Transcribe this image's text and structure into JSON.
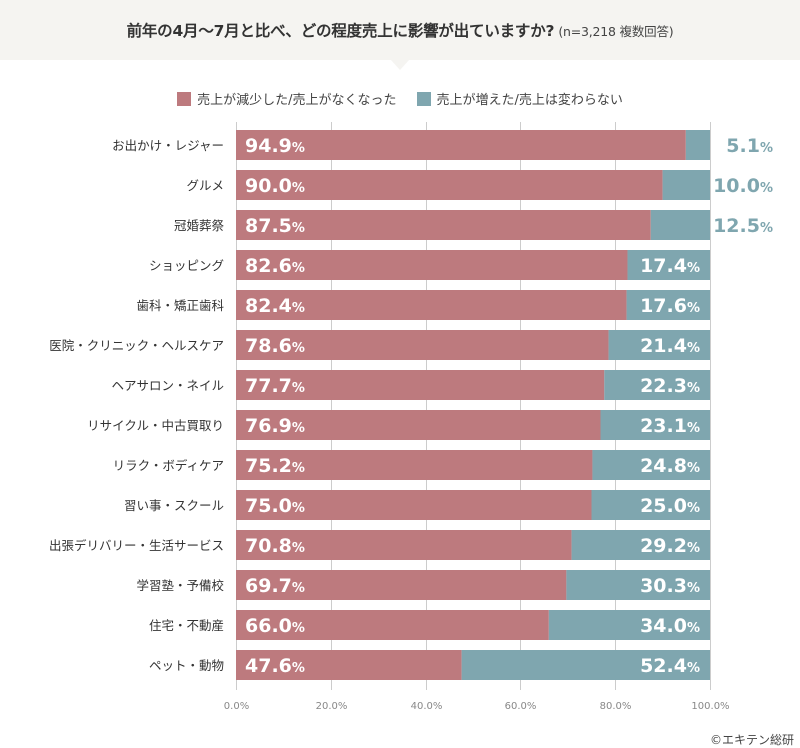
{
  "header": {
    "title": "前年の4月〜7月と比べ、どの程度売上に影響が出ていますか?",
    "subtitle": "(n=3,218 複数回答)"
  },
  "colors": {
    "decreased": "#bd7a7e",
    "increased": "#7fa6af",
    "grid": "#cccccc",
    "label_outside": "#7fa6af"
  },
  "chart_data": {
    "type": "bar",
    "orientation": "horizontal-stacked-100",
    "title": "前年の4月〜7月と比べ、どの程度売上に影響が出ていますか? (n=3,218 複数回答)",
    "xlabel": "",
    "ylabel": "",
    "xlim": [
      0,
      100
    ],
    "x_ticks": [
      "0.0%",
      "20.0%",
      "40.0%",
      "60.0%",
      "80.0%",
      "100.0%"
    ],
    "x_tick_values": [
      0,
      20,
      40,
      60,
      80,
      100
    ],
    "grid": true,
    "legend_position": "top-center",
    "categories": [
      "お出かけ・レジャー",
      "グルメ",
      "冠婚葬祭",
      "ショッピング",
      "歯科・矯正歯科",
      "医院・クリニック・ヘルスケア",
      "ヘアサロン・ネイル",
      "リサイクル・中古買取り",
      "リラク・ボディケア",
      "習い事・スクール",
      "出張デリバリー・生活サービス",
      "学習塾・予備校",
      "住宅・不動産",
      "ペット・動物"
    ],
    "series": [
      {
        "name": "売上が減少した/売上がなくなった",
        "values": [
          94.9,
          90.0,
          87.5,
          82.6,
          82.4,
          78.6,
          77.7,
          76.9,
          75.2,
          75.0,
          70.8,
          69.7,
          66.0,
          47.6
        ]
      },
      {
        "name": "売上が増えた/売上は変わらない",
        "values": [
          5.1,
          10.0,
          12.5,
          17.4,
          17.6,
          21.4,
          22.3,
          23.1,
          24.8,
          25.0,
          29.2,
          30.3,
          34.0,
          52.4
        ]
      }
    ],
    "value_suffix": "%"
  },
  "footer": {
    "copyright": "©エキテン総研"
  }
}
